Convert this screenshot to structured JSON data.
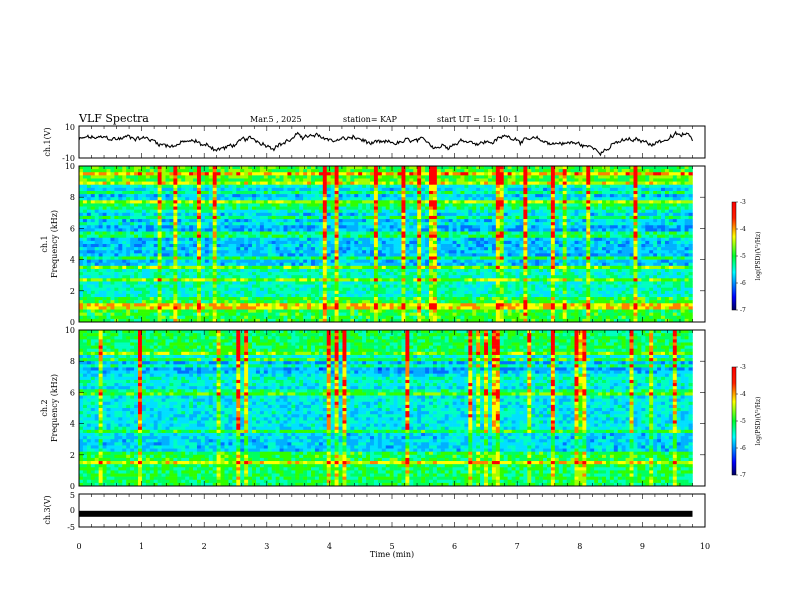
{
  "header": {
    "title": "VLF Spectra",
    "date": "Mar.5  , 2025",
    "station": "station= KAP",
    "start_ut": "start  UT  =   15: 10: 1"
  },
  "chart_data": [
    {
      "type": "line",
      "panel": "ch1-waveform",
      "ylabel": "ch.1(V)",
      "ylim": [
        -10,
        10
      ],
      "yticks": [
        "10",
        "-10"
      ],
      "xlim": [
        0,
        10
      ],
      "note": "noisy waveform oscillating roughly between -5 and +5 V over 0 to 9.8 min"
    },
    {
      "type": "heatmap",
      "panel": "ch1-spectrogram",
      "ylabel_line1": "ch.1",
      "ylabel_line2": "Frequency  (kHz)",
      "ylim": [
        0,
        10
      ],
      "yticks": [
        "0",
        "2",
        "4",
        "6",
        "8",
        "10"
      ],
      "xlim": [
        0,
        10
      ],
      "data_end_min": 9.8,
      "colorbar": {
        "label": "log(PSD)(V²/Hz)",
        "range": [
          -7,
          -3
        ],
        "ticks": [
          "-3",
          "-4",
          "-5",
          "-6",
          "-7"
        ]
      }
    },
    {
      "type": "heatmap",
      "panel": "ch2-spectrogram",
      "ylabel_line1": "ch.2",
      "ylabel_line2": "Frequency  (kHz)",
      "ylim": [
        0,
        10
      ],
      "yticks": [
        "0",
        "2",
        "4",
        "6",
        "8",
        "10"
      ],
      "xlim": [
        0,
        10
      ],
      "data_end_min": 9.8,
      "colorbar": {
        "label": "log(PSD)(V²/Hz)",
        "range": [
          -7,
          -3
        ],
        "ticks": [
          "-3",
          "-4",
          "-5",
          "-6",
          "-7"
        ]
      }
    },
    {
      "type": "line",
      "panel": "ch3-signal",
      "ylabel": "ch.3(V)",
      "ylim": [
        -5,
        5
      ],
      "yticks": [
        "5",
        "0",
        "-5"
      ],
      "xlim": [
        0,
        10
      ],
      "note": "constant thick bar at about -1 V from 0 to 9.8 min"
    }
  ],
  "xaxis": {
    "label": "Time  (min)",
    "ticks": [
      "0",
      "1",
      "2",
      "3",
      "4",
      "5",
      "6",
      "7",
      "8",
      "9",
      "10"
    ]
  },
  "colors": {
    "base_blue": "#0000ff",
    "cyan": "#00e0ff",
    "green": "#00ff40",
    "yellow": "#ffff00",
    "red": "#ff0000",
    "black": "#000000"
  }
}
